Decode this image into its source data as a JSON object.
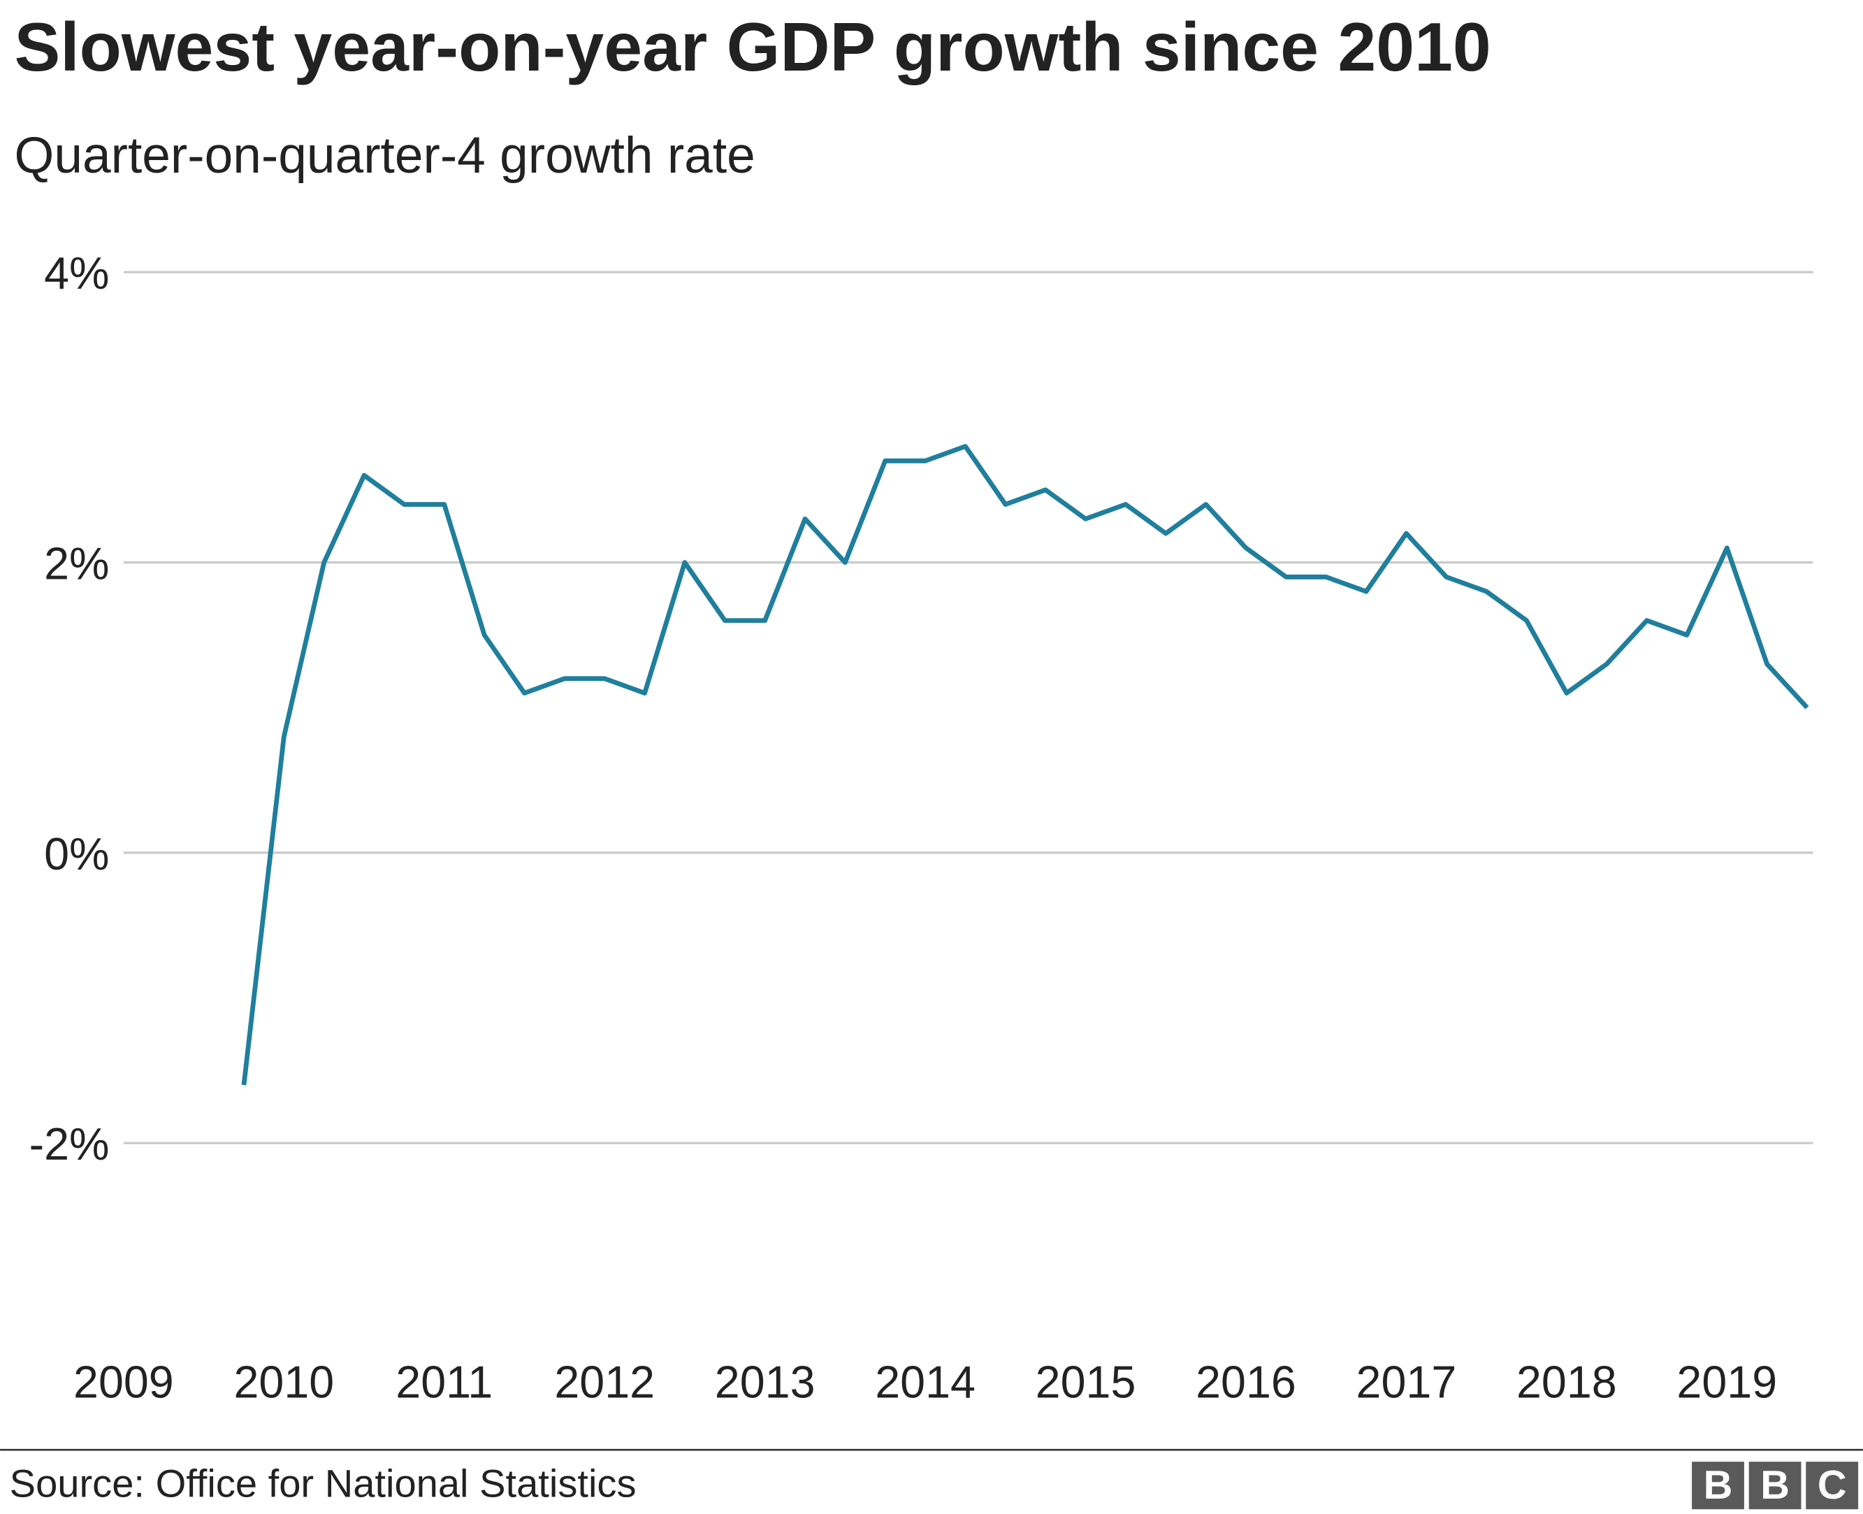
{
  "chart_data": {
    "type": "line",
    "title": "Slowest year-on-year GDP growth since 2010",
    "subtitle": "Quarter-on-quarter-4 growth rate",
    "source": "Source: Office for National Statistics",
    "brand": [
      "B",
      "B",
      "C"
    ],
    "x": [
      2009.75,
      2010,
      2010.25,
      2010.5,
      2010.75,
      2011,
      2011.25,
      2011.5,
      2011.75,
      2012,
      2012.25,
      2012.5,
      2012.75,
      2013,
      2013.25,
      2013.5,
      2013.75,
      2014,
      2014.25,
      2014.5,
      2014.75,
      2015,
      2015.25,
      2015.5,
      2015.75,
      2016,
      2016.25,
      2016.5,
      2016.75,
      2017,
      2017.25,
      2017.5,
      2017.75,
      2018,
      2018.25,
      2018.5,
      2018.75,
      2019,
      2019.25,
      2019.5
    ],
    "values": [
      -1.6,
      0.8,
      2.0,
      2.6,
      2.4,
      2.4,
      1.5,
      1.1,
      1.2,
      1.2,
      1.1,
      2.0,
      1.6,
      1.6,
      2.3,
      2.0,
      2.7,
      2.7,
      2.8,
      2.4,
      2.5,
      2.3,
      2.4,
      2.2,
      2.4,
      2.1,
      1.9,
      1.9,
      1.8,
      2.2,
      1.9,
      1.8,
      1.6,
      1.1,
      1.3,
      1.6,
      1.5,
      2.1,
      1.3,
      1.0
    ],
    "color": "#1f7f9c",
    "xlim": [
      2009,
      2019.5
    ],
    "xticks": [
      2009,
      2010,
      2011,
      2012,
      2013,
      2014,
      2015,
      2016,
      2017,
      2018,
      2019
    ],
    "ylim": [
      -3,
      4
    ],
    "yticks": [
      {
        "value": -2,
        "label": "-2%"
      },
      {
        "value": 0,
        "label": "0%"
      },
      {
        "value": 2,
        "label": "2%"
      },
      {
        "value": 4,
        "label": "4%"
      }
    ],
    "grid": true
  }
}
